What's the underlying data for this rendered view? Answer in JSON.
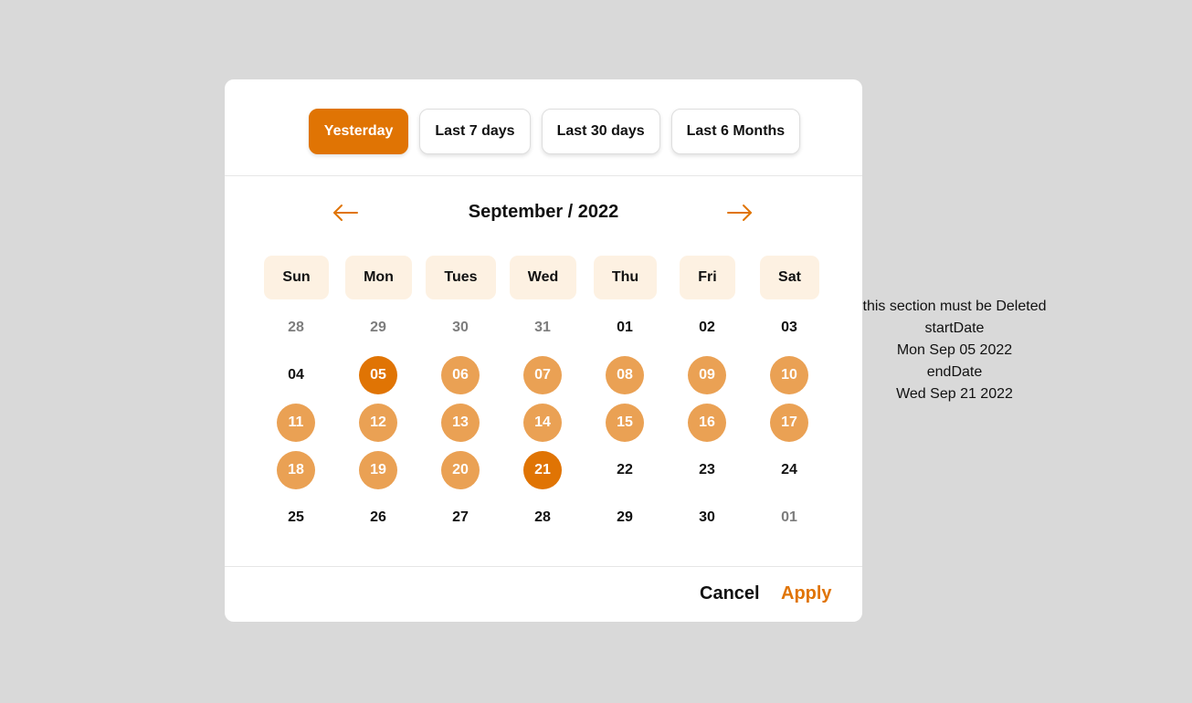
{
  "presets": [
    {
      "label": "Yesterday",
      "active": true
    },
    {
      "label": "Last 7 days",
      "active": false
    },
    {
      "label": "Last 30 days",
      "active": false
    },
    {
      "label": "Last 6 Months",
      "active": false
    }
  ],
  "calendar": {
    "title": "September / 2022",
    "prev_icon": "arrow-left-icon",
    "next_icon": "arrow-right-icon",
    "weekdays": [
      "Sun",
      "Mon",
      "Tues",
      "Wed",
      "Thu",
      "Fri",
      "Sat"
    ],
    "weeks": [
      [
        {
          "d": "28",
          "s": "muted"
        },
        {
          "d": "29",
          "s": "muted"
        },
        {
          "d": "30",
          "s": "muted"
        },
        {
          "d": "31",
          "s": "muted"
        },
        {
          "d": "01",
          "s": ""
        },
        {
          "d": "02",
          "s": ""
        },
        {
          "d": "03",
          "s": ""
        }
      ],
      [
        {
          "d": "04",
          "s": ""
        },
        {
          "d": "05",
          "s": "edge"
        },
        {
          "d": "06",
          "s": "range"
        },
        {
          "d": "07",
          "s": "range"
        },
        {
          "d": "08",
          "s": "range"
        },
        {
          "d": "09",
          "s": "range"
        },
        {
          "d": "10",
          "s": "range"
        }
      ],
      [
        {
          "d": "11",
          "s": "range"
        },
        {
          "d": "12",
          "s": "range"
        },
        {
          "d": "13",
          "s": "range"
        },
        {
          "d": "14",
          "s": "range"
        },
        {
          "d": "15",
          "s": "range"
        },
        {
          "d": "16",
          "s": "range"
        },
        {
          "d": "17",
          "s": "range"
        }
      ],
      [
        {
          "d": "18",
          "s": "range"
        },
        {
          "d": "19",
          "s": "range"
        },
        {
          "d": "20",
          "s": "range"
        },
        {
          "d": "21",
          "s": "edge"
        },
        {
          "d": "22",
          "s": ""
        },
        {
          "d": "23",
          "s": ""
        },
        {
          "d": "24",
          "s": ""
        }
      ],
      [
        {
          "d": "25",
          "s": ""
        },
        {
          "d": "26",
          "s": ""
        },
        {
          "d": "27",
          "s": ""
        },
        {
          "d": "28",
          "s": ""
        },
        {
          "d": "29",
          "s": ""
        },
        {
          "d": "30",
          "s": ""
        },
        {
          "d": "01",
          "s": "muted"
        }
      ]
    ]
  },
  "footer": {
    "cancel_label": "Cancel",
    "apply_label": "Apply"
  },
  "debug": {
    "note": "this section must be Deleted",
    "start_label": "startDate",
    "start_value": "Mon Sep 05 2022",
    "end_label": "endDate",
    "end_value": "Wed Sep 21 2022"
  },
  "colors": {
    "accent": "#e07404",
    "range": "#eaa154",
    "weekday_bg": "#fdf1e2",
    "backdrop": "#d9d9d9"
  }
}
